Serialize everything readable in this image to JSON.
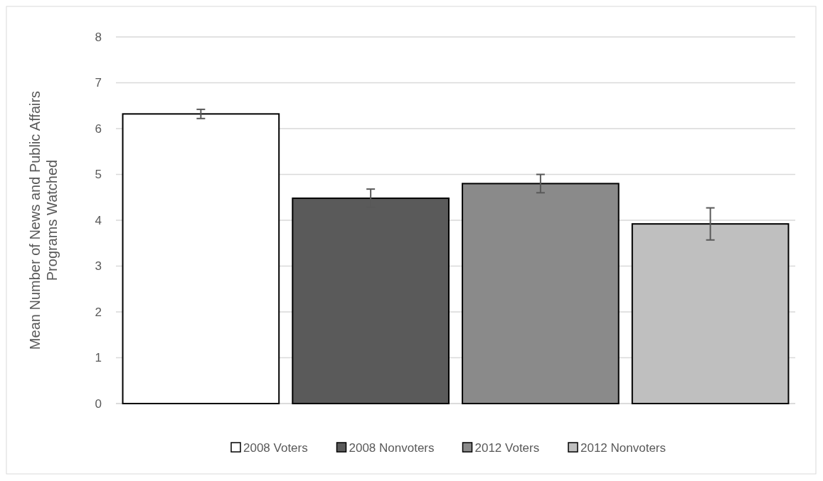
{
  "chart_data": {
    "type": "bar",
    "ylabel": "Mean Number of News and Public Affairs Programs Watched",
    "categories": [
      null,
      null,
      null,
      null
    ],
    "series": [
      {
        "name": "2008 Voters",
        "color": "#ffffff",
        "values": [
          6.32,
          null,
          null,
          null
        ],
        "errors": [
          0.1,
          null,
          null,
          null
        ]
      },
      {
        "name": "2008 Nonvoters",
        "color": "#5a5a5a",
        "values": [
          null,
          4.48,
          null,
          null
        ],
        "errors": [
          null,
          0.2,
          null,
          null
        ]
      },
      {
        "name": "2012 Voters",
        "color": "#8a8a8a",
        "values": [
          null,
          null,
          4.8,
          null
        ],
        "errors": [
          null,
          null,
          0.2,
          null
        ]
      },
      {
        "name": "2012 Nonvoters",
        "color": "#bfbfbf",
        "values": [
          null,
          null,
          null,
          3.92
        ],
        "errors": [
          null,
          null,
          null,
          0.35
        ]
      }
    ],
    "ylim": [
      0,
      8
    ],
    "yticks": [
      0,
      1,
      2,
      3,
      4,
      5,
      6,
      7,
      8
    ],
    "grid": "y",
    "legend": "bottom"
  }
}
